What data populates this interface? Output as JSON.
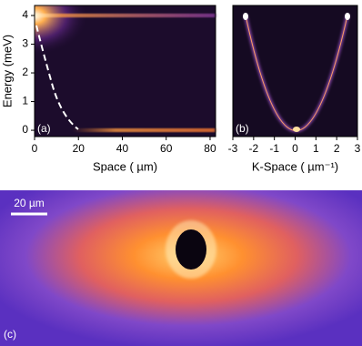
{
  "chart_data": [
    {
      "type": "heatmap",
      "panel_label": "(a)",
      "xlabel": "Space ( µm)",
      "ylabel": "Energy (meV)",
      "xlim": [
        0,
        82.5
      ],
      "xticks": [
        0,
        20,
        40,
        60,
        80
      ],
      "ylim": [
        -0.22,
        4.35
      ],
      "yticks": [
        0,
        1,
        2,
        3,
        4
      ]
    },
    {
      "type": "heatmap",
      "panel_label": "(b)",
      "xlabel": "K-Space ( µm⁻¹)",
      "xlim": [
        -3,
        3
      ],
      "xticks": [
        -3,
        -2,
        -1,
        0,
        1,
        2,
        3
      ],
      "ylim": [
        -0.22,
        4.35
      ]
    },
    {
      "type": "image",
      "panel_label": "(c)",
      "scale_bar": "20 µm"
    }
  ]
}
